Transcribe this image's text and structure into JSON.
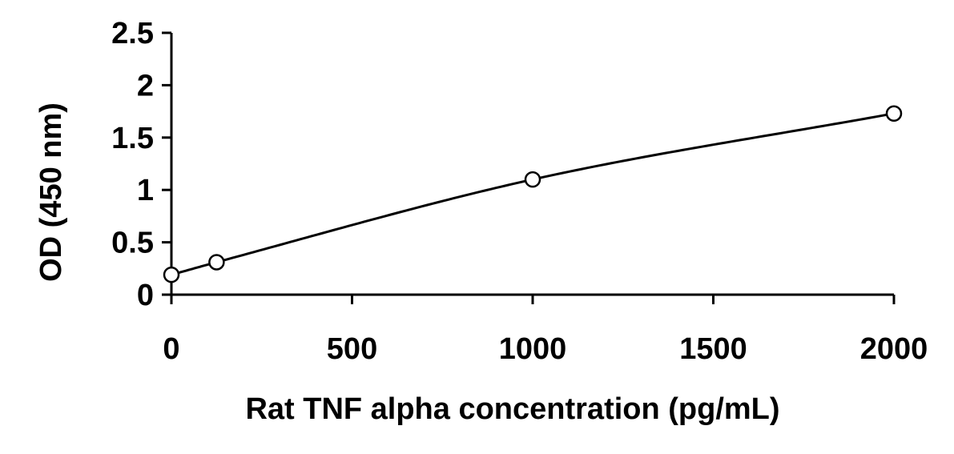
{
  "chart_data": {
    "type": "scatter",
    "title": "",
    "xlabel": "Rat TNF alpha concentration (pg/mL)",
    "ylabel": "OD (450 nm)",
    "xlim": [
      0,
      2000
    ],
    "ylim": [
      0,
      2.5
    ],
    "xticks": [
      "0",
      "500",
      "1000",
      "1500",
      "2000"
    ],
    "yticks": [
      "0",
      "0.5",
      "1",
      "1.5",
      "2",
      "2.5"
    ],
    "grid": false,
    "legend": "none",
    "series": [
      {
        "points": [
          {
            "x": 0,
            "y": 0.19
          },
          {
            "x": 125,
            "y": 0.31
          },
          {
            "x": 1000,
            "y": 1.1
          },
          {
            "x": 2000,
            "y": 1.73
          }
        ],
        "marker": "open-circle",
        "line": "smooth-fit",
        "color": "#000000"
      }
    ]
  }
}
